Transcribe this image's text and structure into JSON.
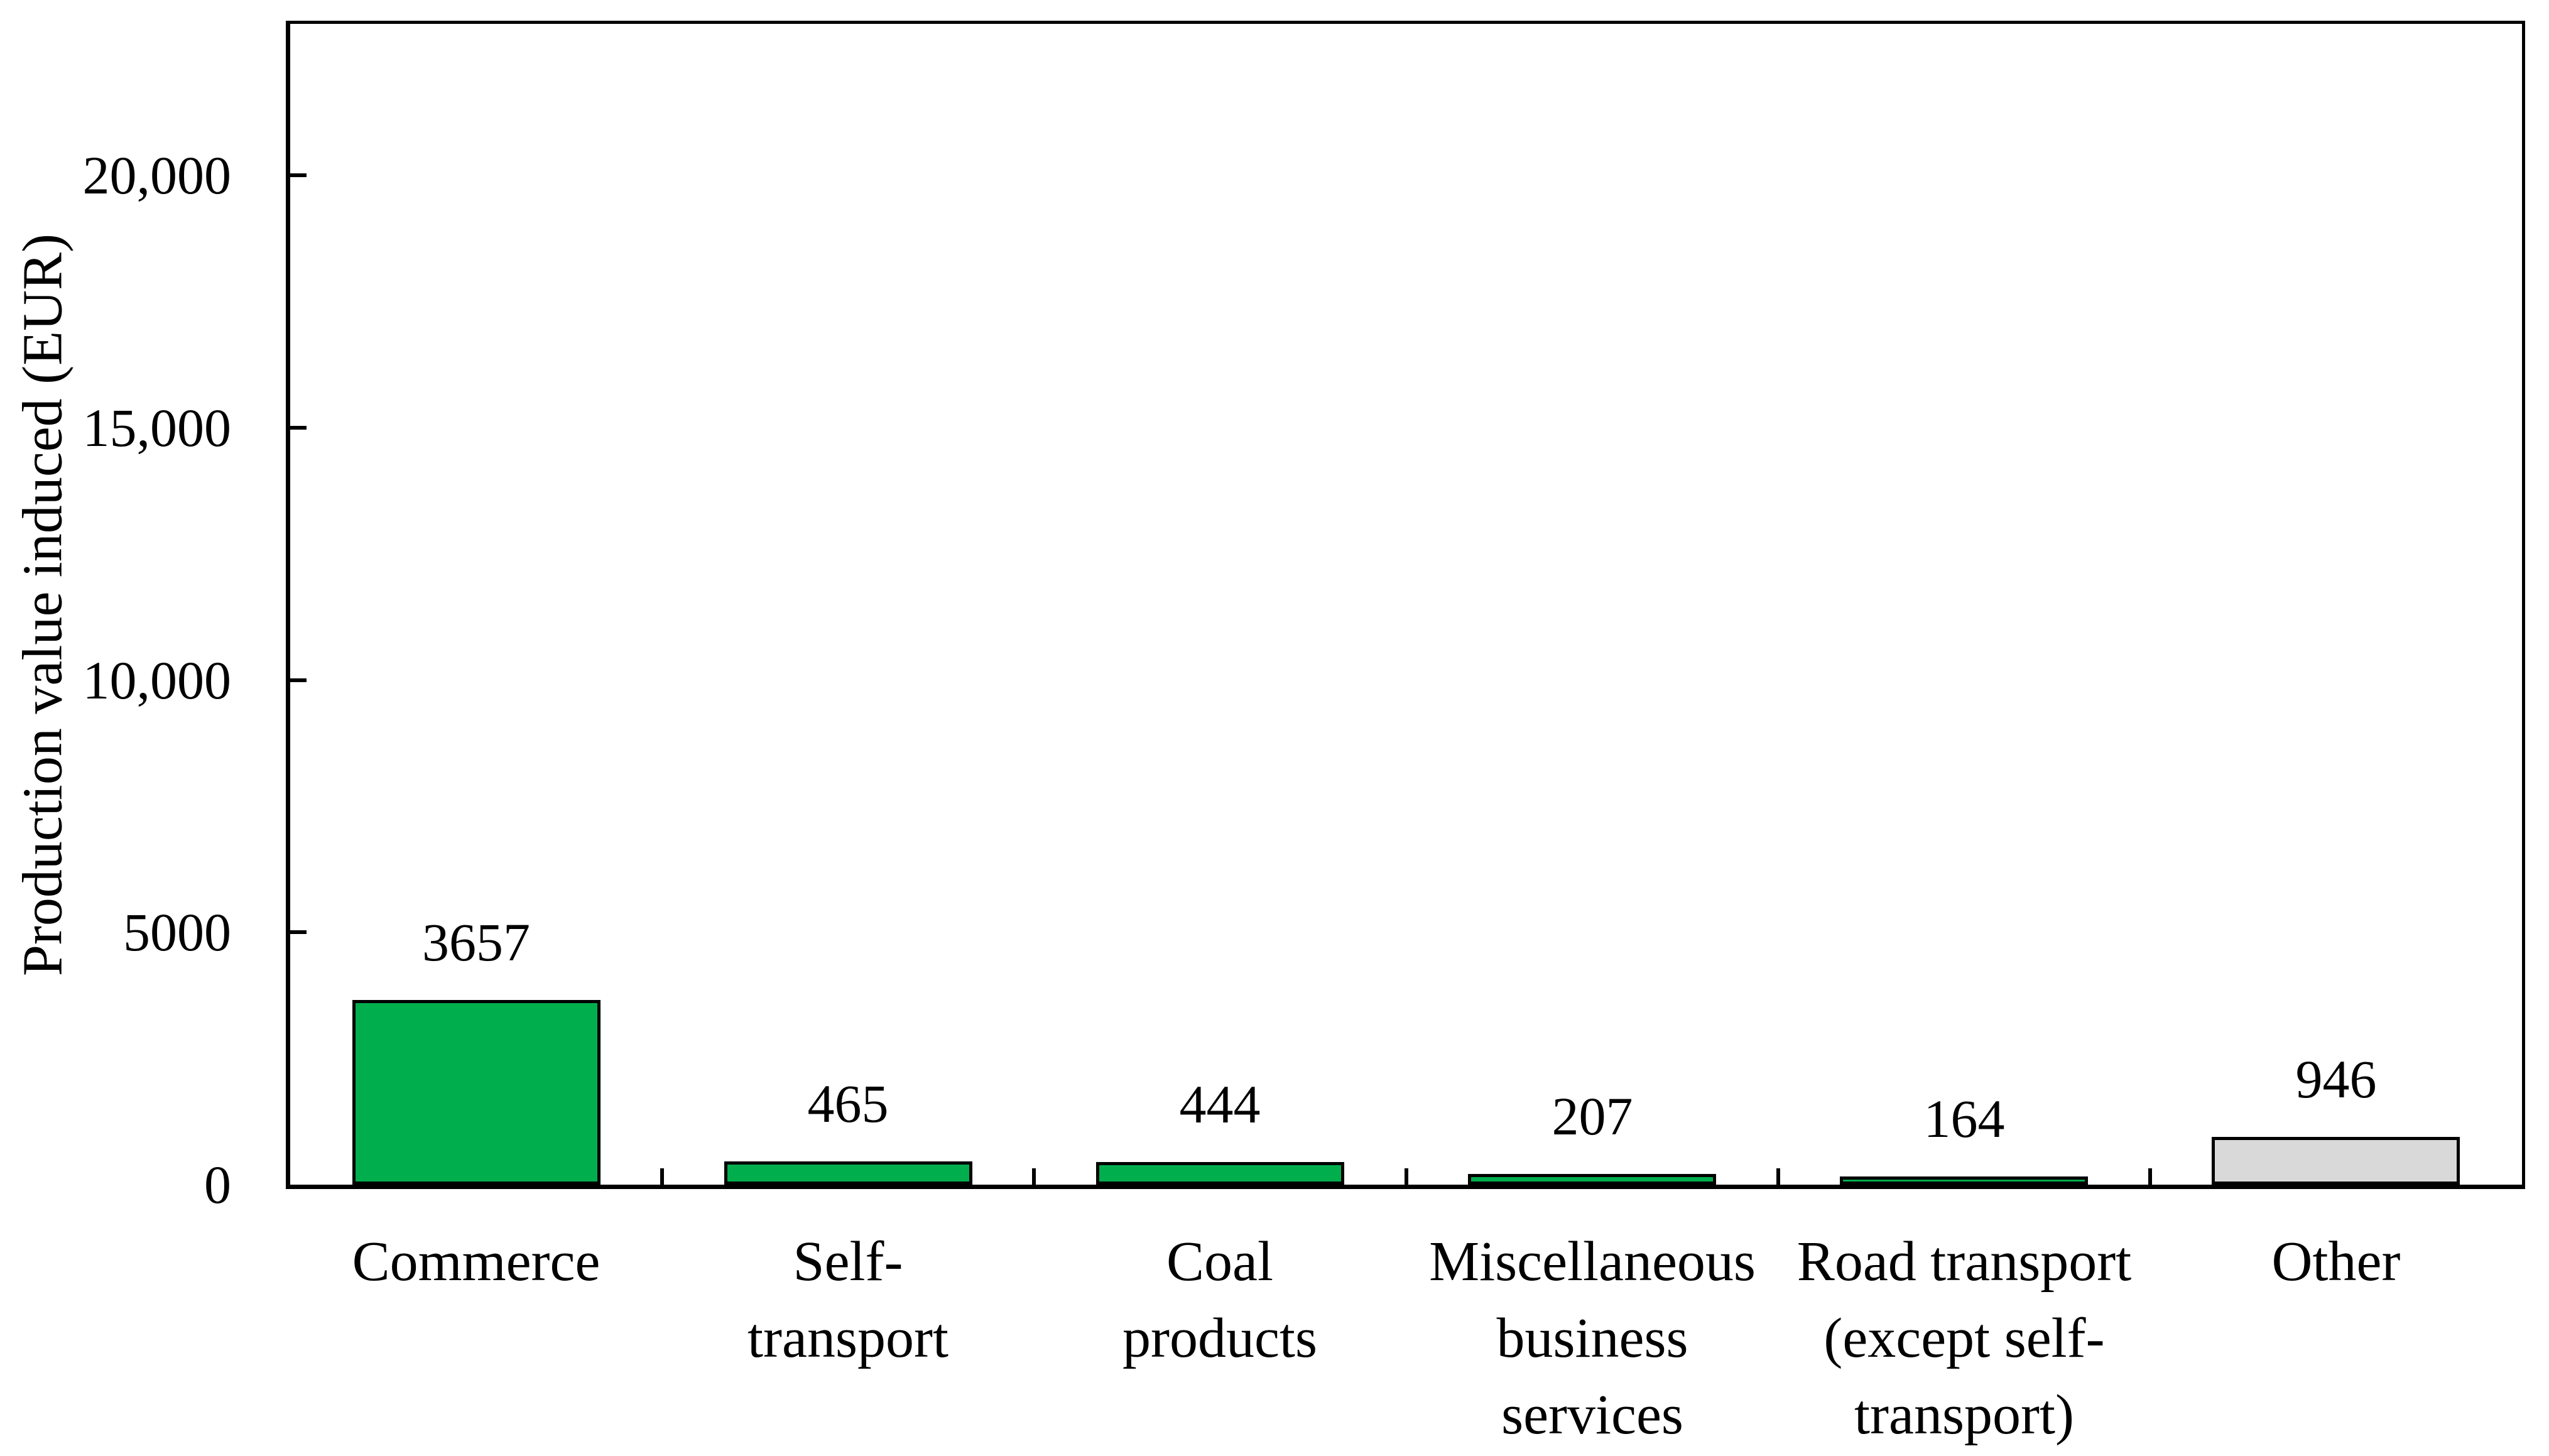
{
  "figure": {
    "background": "#FFFFFF",
    "text_color": "#000000",
    "axis_color": "#000000"
  },
  "chart_data": {
    "type": "bar",
    "title": "",
    "xlabel": "",
    "ylabel": "Production value induced (EUR)",
    "ylim": [
      0,
      23000
    ],
    "grid": false,
    "legend_position": "none",
    "bar_outline_color": "#000000",
    "yticks": [
      {
        "value": 0,
        "label": "0"
      },
      {
        "value": 5000,
        "label": "5000"
      },
      {
        "value": 10000,
        "label": "10,000"
      },
      {
        "value": 15000,
        "label": "15,000"
      },
      {
        "value": 20000,
        "label": "20,000"
      }
    ],
    "categories": [
      {
        "name": "commerce",
        "label": "Commerce",
        "value": 3657,
        "data_label": "3657",
        "color": "#00AE4D"
      },
      {
        "name": "self-transport",
        "label": "Self-\ntransport",
        "value": 465,
        "data_label": "465",
        "color": "#00AE4D"
      },
      {
        "name": "coal-products",
        "label": "Coal\nproducts",
        "value": 444,
        "data_label": "444",
        "color": "#00AE4D"
      },
      {
        "name": "miscellaneous-business-services",
        "label": "Miscellaneous\nbusiness\nservices",
        "value": 207,
        "data_label": "207",
        "color": "#00AE4D"
      },
      {
        "name": "road-transport-except-self-transport",
        "label": "Road transport\n(except self-\ntransport)",
        "value": 164,
        "data_label": "164",
        "color": "#00AE4D"
      },
      {
        "name": "other",
        "label": "Other",
        "value": 946,
        "data_label": "946",
        "color": "#D9D9D9"
      }
    ]
  }
}
